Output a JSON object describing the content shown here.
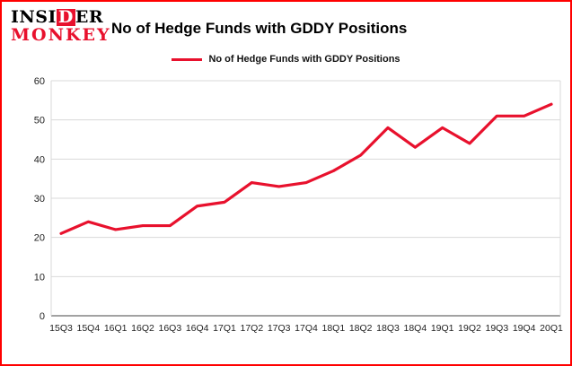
{
  "brand": {
    "line1_pre": "INSI",
    "line1_highlight": "D",
    "line1_post": "ER",
    "line2": "MONKEY"
  },
  "header": {
    "title": "No of Hedge Funds with GDDY Positions"
  },
  "legend": {
    "label": "No of Hedge Funds with GDDY Positions"
  },
  "colors": {
    "page_border": "#ff0000",
    "brand_red": "#e8112d",
    "line": "#e8112d",
    "grid": "#d9d9d9",
    "axis_line": "#454545",
    "axis_text": "#222222"
  },
  "chart_data": {
    "type": "line",
    "title": "No of Hedge Funds with GDDY Positions",
    "categories": [
      "15Q3",
      "15Q4",
      "16Q1",
      "16Q2",
      "16Q3",
      "16Q4",
      "17Q1",
      "17Q2",
      "17Q3",
      "17Q4",
      "18Q1",
      "18Q2",
      "18Q3",
      "18Q4",
      "19Q1",
      "19Q2",
      "19Q3",
      "19Q4",
      "20Q1"
    ],
    "values": [
      21,
      24,
      22,
      23,
      23,
      28,
      29,
      34,
      33,
      34,
      37,
      41,
      48,
      43,
      48,
      44,
      51,
      51,
      54
    ],
    "xlabel": "",
    "ylabel": "",
    "ylim": [
      0,
      60
    ],
    "yticks": [
      0,
      10,
      20,
      30,
      40,
      50,
      60
    ],
    "grid": true,
    "legend_position": "top"
  }
}
